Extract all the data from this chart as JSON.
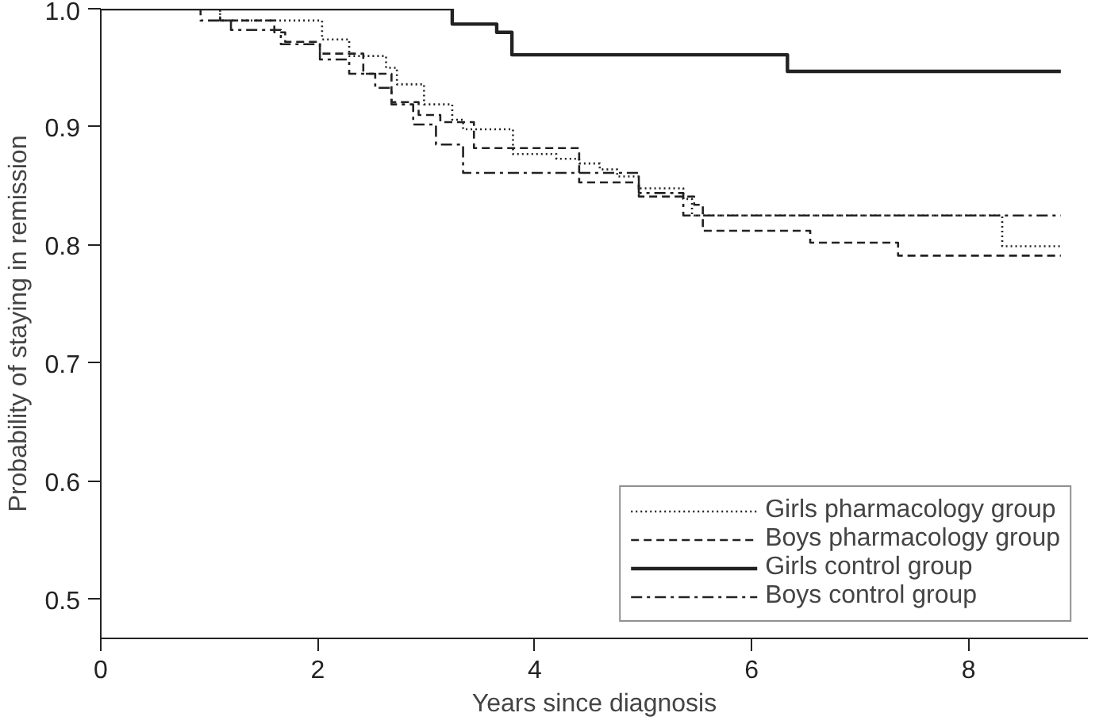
{
  "chart_data": {
    "type": "step",
    "xlabel": "Years since diagnosis",
    "ylabel": "Probability of staying in remission",
    "xlim": [
      0,
      9.1
    ],
    "ylim": [
      0.467,
      1.0
    ],
    "xticks": [
      0,
      2,
      4,
      6,
      8
    ],
    "yticks": [
      0.5,
      0.6,
      0.7,
      0.8,
      0.9,
      {
        "value": 1.0,
        "label": "1.0"
      }
    ],
    "grid": false,
    "legend": "bottom right",
    "marker": "none",
    "series": [
      {
        "name": "Girls pharmacology group",
        "color": "#222222",
        "line_style": "dotted",
        "x": [
          0,
          1.1,
          2.04,
          2.29,
          2.63,
          2.73,
          2.98,
          3.24,
          3.34,
          3.8,
          4.2,
          4.41,
          4.6,
          4.76,
          4.96,
          5.37,
          5.45,
          8.31,
          8.85
        ],
        "values": [
          1.0,
          0.99,
          0.974,
          0.96,
          0.95,
          0.936,
          0.919,
          0.906,
          0.898,
          0.877,
          0.873,
          0.869,
          0.864,
          0.858,
          0.848,
          0.839,
          0.825,
          0.799,
          0.799
        ]
      },
      {
        "name": "Boys pharmacology group",
        "color": "#222222",
        "line_style": "dashed",
        "x": [
          0,
          1.1,
          1.6,
          1.7,
          2.02,
          2.42,
          2.68,
          2.93,
          3.13,
          3.44,
          4.41,
          4.96,
          5.47,
          5.55,
          6.54,
          7.35,
          8.85
        ],
        "values": [
          1.0,
          0.99,
          0.98,
          0.972,
          0.962,
          0.945,
          0.921,
          0.91,
          0.904,
          0.882,
          0.853,
          0.841,
          0.834,
          0.812,
          0.802,
          0.791,
          0.791
        ]
      },
      {
        "name": "Girls control group",
        "color": "#222222",
        "line_style": "solid",
        "x": [
          0,
          3.24,
          3.65,
          3.79,
          6.33,
          8.85
        ],
        "values": [
          1.0,
          0.987,
          0.98,
          0.961,
          0.947,
          0.947
        ]
      },
      {
        "name": "Boys control group",
        "color": "#222222",
        "line_style": "dashdot",
        "x": [
          0,
          0.92,
          1.2,
          1.66,
          2.02,
          2.29,
          2.53,
          2.68,
          2.88,
          3.09,
          3.34,
          4.96,
          5.37,
          8.85
        ],
        "values": [
          1.0,
          0.99,
          0.982,
          0.97,
          0.957,
          0.945,
          0.933,
          0.919,
          0.902,
          0.885,
          0.861,
          0.844,
          0.825,
          0.825
        ]
      }
    ]
  }
}
